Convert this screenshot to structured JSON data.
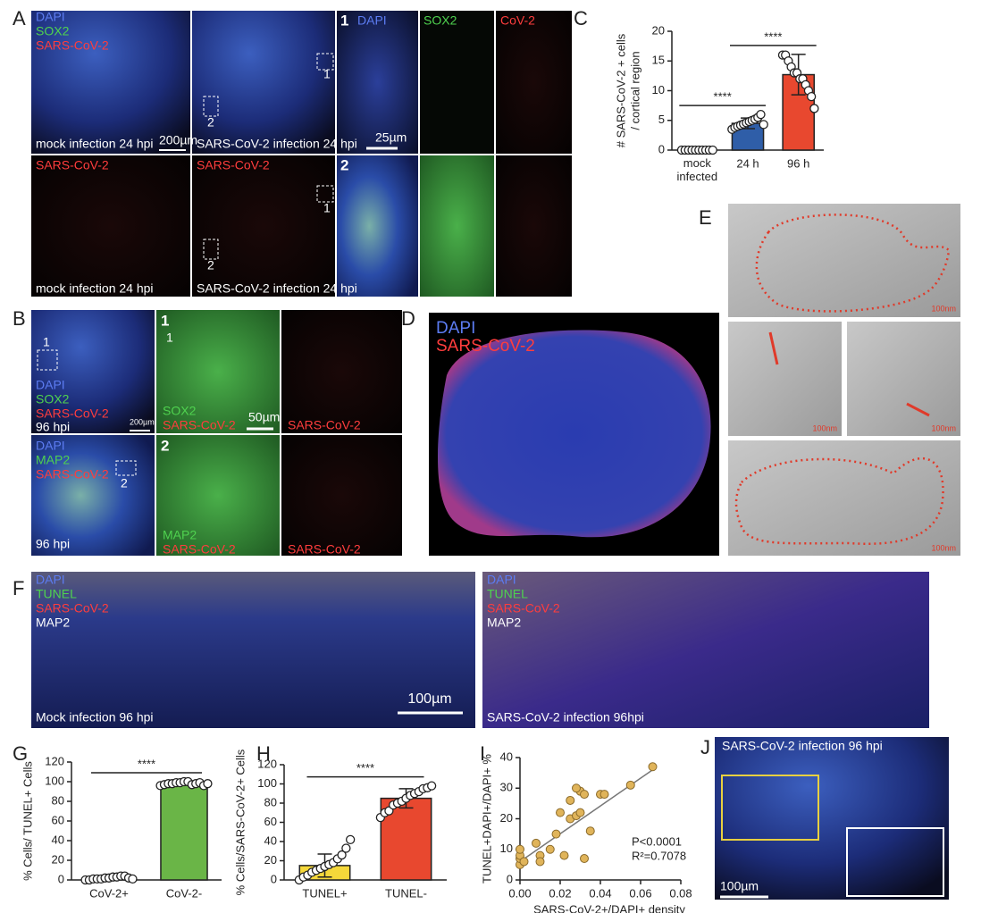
{
  "panel_labels": [
    "A",
    "B",
    "C",
    "D",
    "E",
    "F",
    "G",
    "H",
    "I",
    "J"
  ],
  "panel_a": [
    "DAPI",
    "SOX2",
    "SARS-CoV-2",
    "mock infection 24 hpi",
    "200µm",
    "SARS-CoV-2 infection 24 hpi",
    "1",
    "2",
    "1",
    "DAPI",
    "SOX2",
    "CoV-2",
    "25µm",
    "SARS-CoV-2",
    "mock infection 24 hpi",
    "SARS-CoV-2",
    "1",
    "2",
    "SARS-CoV-2 infection 24 hpi",
    "2"
  ],
  "panel_b": [
    "1",
    "DAPI",
    "SOX2",
    "SARS-CoV-2",
    "96 hpi",
    "200µm",
    "1",
    "1",
    "SOX2",
    "SARS-CoV-2",
    "50µm",
    "SARS-CoV-2",
    "DAPI",
    "MAP2",
    "SARS-CoV-2",
    "2",
    "96 hpi",
    "2",
    "MAP2",
    "SARS-CoV-2",
    "SARS-CoV-2"
  ],
  "panel_d": [
    "DAPI",
    "SARS-CoV-2"
  ],
  "panel_e": [
    "100nm",
    "100nm",
    "100nm",
    "100nm"
  ],
  "panel_f": [
    "DAPI",
    "TUNEL",
    "SARS-CoV-2",
    "MAP2",
    "Mock infection 96 hpi",
    "100µm",
    "DAPI",
    "TUNEL",
    "SARS-CoV-2",
    "MAP2",
    "SARS-CoV-2 infection 96hpi"
  ],
  "panel_j": [
    "SARS-CoV-2 infection 96 hpi",
    "100µm"
  ],
  "chart_data": [
    {
      "type": "bar",
      "ylabel": [
        "# SARS-CoV-2 + cells",
        "/ cortical region"
      ],
      "categories": [
        "mock infected",
        "24 h",
        "96 h"
      ],
      "values": [
        0,
        4.5,
        12.7
      ],
      "errors": [
        0,
        0.9,
        3.4
      ],
      "colors": [
        "#ffffff",
        "#2f5ea8",
        "#e8482f"
      ],
      "points": [
        [
          0,
          0,
          0,
          0,
          0,
          0,
          0,
          0,
          0,
          0
        ],
        [
          3.5,
          3.8,
          4,
          4.2,
          4.4,
          4.6,
          4.8,
          5,
          5.2,
          5.5,
          6,
          4.3
        ],
        [
          16,
          16,
          15,
          14,
          13,
          13,
          12,
          12,
          11,
          10,
          9,
          7
        ]
      ],
      "significance": [
        "****",
        "****"
      ],
      "ylim": [
        0,
        20
      ],
      "yticks": [
        0,
        5,
        10,
        15,
        20
      ]
    },
    {
      "type": "bar",
      "ylabel": "% Cells/ TUNEL+ Cells",
      "categories": [
        "CoV-2+",
        "CoV-2-"
      ],
      "values": [
        2,
        98
      ],
      "errors": [
        1.5,
        1.3
      ],
      "colors": [
        "#ffffff",
        "#6ab547"
      ],
      "points": [
        [
          0,
          0,
          1,
          1,
          1,
          2,
          2,
          3,
          3,
          4,
          4,
          2,
          1
        ],
        [
          96,
          97,
          98,
          98,
          99,
          99,
          100,
          100,
          97,
          98,
          99,
          96,
          98
        ]
      ],
      "significance": [
        "****"
      ],
      "ylim": [
        0,
        120
      ],
      "yticks": [
        0,
        20,
        40,
        60,
        80,
        100,
        120
      ]
    },
    {
      "type": "bar",
      "ylabel": "% Cells/SARS-CoV-2+ Cells",
      "categories": [
        "TUNEL+",
        "TUNEL-"
      ],
      "values": [
        15,
        85
      ],
      "errors": [
        12,
        10
      ],
      "colors": [
        "#f5d83a",
        "#e8482f"
      ],
      "points": [
        [
          0,
          3,
          5,
          8,
          10,
          12,
          14,
          16,
          18,
          22,
          26,
          33,
          42
        ],
        [
          65,
          70,
          72,
          78,
          80,
          82,
          85,
          88,
          90,
          92,
          95,
          96,
          98
        ]
      ],
      "significance": [
        "****"
      ],
      "ylim": [
        0,
        120
      ],
      "yticks": [
        0,
        20,
        40,
        60,
        80,
        100,
        120
      ]
    },
    {
      "type": "scatter",
      "xlabel": "SARS-CoV-2+/DAPI+ density",
      "ylabel": "TUNEL+DAPI+/DAPI+ %",
      "x": [
        0,
        0,
        0,
        0,
        0.002,
        0.008,
        0.01,
        0.01,
        0.015,
        0.018,
        0.02,
        0.022,
        0.025,
        0.025,
        0.028,
        0.03,
        0.03,
        0.032,
        0.028,
        0.035,
        0.032,
        0.04,
        0.042,
        0.055,
        0.066
      ],
      "y": [
        5,
        7,
        8,
        10,
        6,
        12,
        8,
        6,
        10,
        15,
        22,
        8,
        20,
        26,
        21,
        22,
        29,
        28,
        30,
        16,
        7,
        28,
        28,
        31,
        37
      ],
      "color": "#e0b45a",
      "fit": {
        "x": [
          0,
          0.066
        ],
        "y": [
          6,
          36
        ]
      },
      "annotations": [
        "P<0.0001",
        "R²=0.7078"
      ],
      "xlim": [
        0,
        0.08
      ],
      "xticks": [
        {
          "value": 0,
          "label": "0.00"
        },
        0.02,
        0.04,
        0.06,
        0.08
      ],
      "ylim": [
        0,
        40
      ],
      "yticks": [
        0,
        10,
        20,
        30,
        40
      ]
    }
  ]
}
